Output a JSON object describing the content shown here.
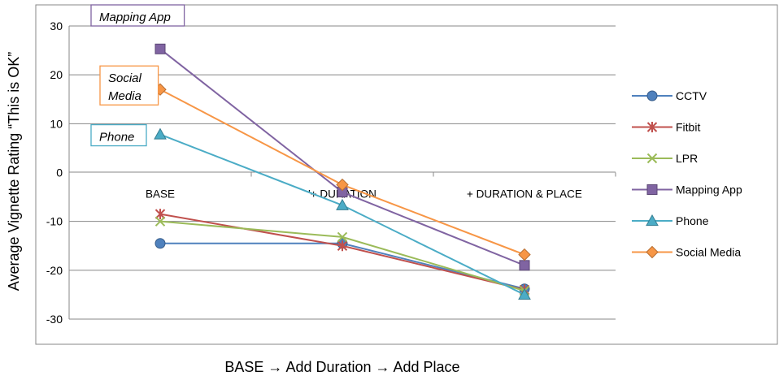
{
  "chart_data": {
    "type": "line",
    "title": "",
    "xlabel": "BASE → Add Duration → Add Place",
    "ylabel": "Average Vignette Rating “This is OK”",
    "categories": [
      "BASE",
      "'+ DURATION",
      "+ DURATION & PLACE"
    ],
    "ylim": [
      -30,
      30
    ],
    "yticks": [
      30,
      20,
      10,
      0,
      -10,
      -20,
      -30
    ],
    "grid": true,
    "legend_position": "right",
    "series": [
      {
        "name": "CCTV",
        "values": [
          -14.5,
          -14.5,
          -23.8
        ],
        "color": "#4F81BD",
        "marker": "circle"
      },
      {
        "name": "Fitbit",
        "values": [
          -8.5,
          -15.0,
          -24.0
        ],
        "color": "#C0504D",
        "marker": "star"
      },
      {
        "name": "LPR",
        "values": [
          -10.0,
          -13.2,
          -24.2
        ],
        "color": "#9BBB59",
        "marker": "x"
      },
      {
        "name": "Mapping App",
        "values": [
          25.3,
          -4.0,
          -19.0
        ],
        "color": "#8064A2",
        "marker": "square"
      },
      {
        "name": "Phone",
        "values": [
          7.8,
          -6.7,
          -25.0
        ],
        "color": "#4BACC6",
        "marker": "triangle"
      },
      {
        "name": "Social Media",
        "values": [
          17.0,
          -2.5,
          -16.8
        ],
        "color": "#F79646",
        "marker": "diamond"
      }
    ],
    "annotations": [
      {
        "text_lines": [
          "Mapping App"
        ],
        "series": "Mapping App",
        "border_color": "#8064A2"
      },
      {
        "text_lines": [
          "Social",
          "Media"
        ],
        "series": "Social Media",
        "border_color": "#F79646"
      },
      {
        "text_lines": [
          "Phone"
        ],
        "series": "Phone",
        "border_color": "#4BACC6"
      }
    ]
  }
}
